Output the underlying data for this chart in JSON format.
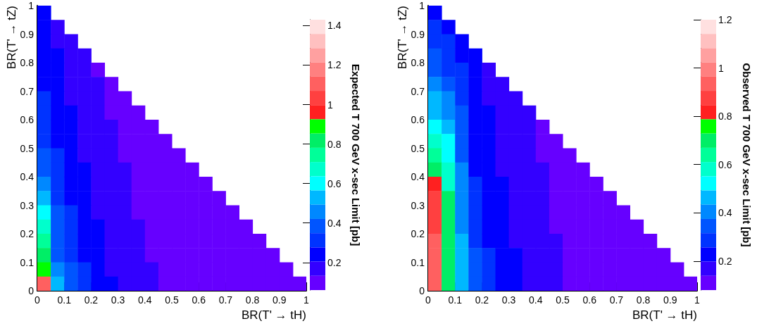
{
  "chart_data": [
    {
      "type": "heatmap",
      "xlabel": "BR(T' → tH)",
      "ylabel": "BR(T' → tZ)",
      "clabel": "Expected T 700 GeV x-sec Limit [pb]",
      "xlim": [
        0,
        1
      ],
      "xticks": [
        0,
        0.1,
        0.2,
        0.3,
        0.4,
        0.5,
        0.6,
        0.7,
        0.8,
        0.9,
        1
      ],
      "ylim": [
        0,
        1
      ],
      "yticks": [
        0,
        0.1,
        0.2,
        0.3,
        0.4,
        0.5,
        0.6,
        0.7,
        0.8,
        0.9,
        1
      ],
      "clim": [
        0.06,
        1.43
      ],
      "cticks": [
        0.2,
        0.4,
        0.6,
        0.8,
        1,
        1.2,
        1.4
      ],
      "cells": [
        [
          0.24,
          null,
          null,
          null,
          null,
          null,
          null,
          null,
          null,
          null,
          null,
          null,
          null,
          null,
          null,
          null,
          null,
          null,
          null,
          null
        ],
        [
          0.24,
          0.17,
          null,
          null,
          null,
          null,
          null,
          null,
          null,
          null,
          null,
          null,
          null,
          null,
          null,
          null,
          null,
          null,
          null,
          null
        ],
        [
          0.24,
          0.17,
          0.17,
          null,
          null,
          null,
          null,
          null,
          null,
          null,
          null,
          null,
          null,
          null,
          null,
          null,
          null,
          null,
          null,
          null
        ],
        [
          0.24,
          0.24,
          0.17,
          0.17,
          null,
          null,
          null,
          null,
          null,
          null,
          null,
          null,
          null,
          null,
          null,
          null,
          null,
          null,
          null,
          null
        ],
        [
          0.24,
          0.24,
          0.17,
          0.17,
          0.09,
          null,
          null,
          null,
          null,
          null,
          null,
          null,
          null,
          null,
          null,
          null,
          null,
          null,
          null,
          null
        ],
        [
          0.24,
          0.24,
          0.17,
          0.17,
          0.17,
          0.09,
          null,
          null,
          null,
          null,
          null,
          null,
          null,
          null,
          null,
          null,
          null,
          null,
          null,
          null
        ],
        [
          0.31,
          0.24,
          0.17,
          0.17,
          0.17,
          0.09,
          0.09,
          null,
          null,
          null,
          null,
          null,
          null,
          null,
          null,
          null,
          null,
          null,
          null,
          null
        ],
        [
          0.31,
          0.24,
          0.24,
          0.17,
          0.17,
          0.09,
          0.09,
          0.09,
          null,
          null,
          null,
          null,
          null,
          null,
          null,
          null,
          null,
          null,
          null,
          null
        ],
        [
          0.31,
          0.24,
          0.24,
          0.17,
          0.17,
          0.17,
          0.09,
          0.09,
          0.09,
          null,
          null,
          null,
          null,
          null,
          null,
          null,
          null,
          null,
          null,
          null
        ],
        [
          0.31,
          0.24,
          0.24,
          0.17,
          0.17,
          0.17,
          0.09,
          0.09,
          0.09,
          0.09,
          null,
          null,
          null,
          null,
          null,
          null,
          null,
          null,
          null,
          null
        ],
        [
          0.38,
          0.31,
          0.24,
          0.17,
          0.17,
          0.17,
          0.09,
          0.09,
          0.09,
          0.09,
          0.09,
          null,
          null,
          null,
          null,
          null,
          null,
          null,
          null,
          null
        ],
        [
          0.38,
          0.31,
          0.24,
          0.24,
          0.17,
          0.17,
          0.17,
          0.09,
          0.09,
          0.09,
          0.09,
          0.09,
          null,
          null,
          null,
          null,
          null,
          null,
          null,
          null
        ],
        [
          0.46,
          0.31,
          0.24,
          0.24,
          0.17,
          0.17,
          0.17,
          0.09,
          0.09,
          0.09,
          0.09,
          0.09,
          0.09,
          null,
          null,
          null,
          null,
          null,
          null,
          null
        ],
        [
          0.53,
          0.31,
          0.24,
          0.24,
          0.17,
          0.17,
          0.17,
          0.09,
          0.09,
          0.09,
          0.09,
          0.09,
          0.09,
          0.09,
          null,
          null,
          null,
          null,
          null,
          null
        ],
        [
          0.6,
          0.38,
          0.31,
          0.24,
          0.17,
          0.17,
          0.17,
          0.09,
          0.09,
          0.09,
          0.09,
          0.09,
          0.09,
          0.09,
          0.09,
          null,
          null,
          null,
          null,
          null
        ],
        [
          0.67,
          0.38,
          0.31,
          0.24,
          0.24,
          0.17,
          0.17,
          0.17,
          0.09,
          0.09,
          0.09,
          0.09,
          0.09,
          0.09,
          0.09,
          0.09,
          null,
          null,
          null,
          null
        ],
        [
          0.75,
          0.38,
          0.31,
          0.24,
          0.24,
          0.17,
          0.17,
          0.17,
          0.09,
          0.09,
          0.09,
          0.09,
          0.09,
          0.09,
          0.09,
          0.09,
          0.09,
          null,
          null,
          null
        ],
        [
          0.82,
          0.38,
          0.31,
          0.24,
          0.24,
          0.17,
          0.17,
          0.17,
          0.09,
          0.09,
          0.09,
          0.09,
          0.09,
          0.09,
          0.09,
          0.09,
          0.09,
          0.09,
          null,
          null
        ],
        [
          0.89,
          0.46,
          0.38,
          0.31,
          0.24,
          0.17,
          0.17,
          0.17,
          0.17,
          0.09,
          0.09,
          0.09,
          0.09,
          0.09,
          0.09,
          0.09,
          0.09,
          0.09,
          0.09,
          null
        ],
        [
          1.11,
          0.53,
          0.38,
          0.31,
          0.24,
          0.24,
          0.17,
          0.17,
          0.17,
          0.09,
          0.09,
          0.09,
          0.09,
          0.09,
          0.09,
          0.09,
          0.09,
          0.09,
          0.09,
          0.09
        ]
      ]
    },
    {
      "type": "heatmap",
      "xlabel": "BR(T' → tH)",
      "ylabel": "BR(T' → tZ)",
      "clabel": "Observed T 700 GeV x-sec Limit [pb]",
      "xlim": [
        0,
        1
      ],
      "xticks": [
        0,
        0.1,
        0.2,
        0.3,
        0.4,
        0.5,
        0.6,
        0.7,
        0.8,
        0.9,
        1
      ],
      "ylim": [
        0,
        1
      ],
      "yticks": [
        0,
        0.1,
        0.2,
        0.3,
        0.4,
        0.5,
        0.6,
        0.7,
        0.8,
        0.9,
        1
      ],
      "clim": [
        0.08,
        1.2
      ],
      "cticks": [
        0.2,
        0.4,
        0.6,
        0.8,
        1,
        1.2
      ],
      "cells": [
        [
          0.22,
          null,
          null,
          null,
          null,
          null,
          null,
          null,
          null,
          null,
          null,
          null,
          null,
          null,
          null,
          null,
          null,
          null,
          null,
          null
        ],
        [
          0.28,
          0.22,
          null,
          null,
          null,
          null,
          null,
          null,
          null,
          null,
          null,
          null,
          null,
          null,
          null,
          null,
          null,
          null,
          null,
          null
        ],
        [
          0.28,
          0.28,
          0.22,
          null,
          null,
          null,
          null,
          null,
          null,
          null,
          null,
          null,
          null,
          null,
          null,
          null,
          null,
          null,
          null,
          null
        ],
        [
          0.34,
          0.28,
          0.22,
          0.22,
          null,
          null,
          null,
          null,
          null,
          null,
          null,
          null,
          null,
          null,
          null,
          null,
          null,
          null,
          null,
          null
        ],
        [
          0.34,
          0.28,
          0.28,
          0.22,
          0.17,
          null,
          null,
          null,
          null,
          null,
          null,
          null,
          null,
          null,
          null,
          null,
          null,
          null,
          null,
          null
        ],
        [
          0.39,
          0.34,
          0.28,
          0.22,
          0.17,
          0.17,
          null,
          null,
          null,
          null,
          null,
          null,
          null,
          null,
          null,
          null,
          null,
          null,
          null,
          null
        ],
        [
          0.45,
          0.39,
          0.28,
          0.22,
          0.17,
          0.17,
          0.17,
          null,
          null,
          null,
          null,
          null,
          null,
          null,
          null,
          null,
          null,
          null,
          null,
          null
        ],
        [
          0.45,
          0.39,
          0.34,
          0.22,
          0.22,
          0.17,
          0.17,
          0.17,
          null,
          null,
          null,
          null,
          null,
          null,
          null,
          null,
          null,
          null,
          null,
          null
        ],
        [
          0.51,
          0.45,
          0.34,
          0.22,
          0.22,
          0.17,
          0.17,
          0.17,
          0.11,
          null,
          null,
          null,
          null,
          null,
          null,
          null,
          null,
          null,
          null,
          null
        ],
        [
          0.56,
          0.51,
          0.34,
          0.22,
          0.22,
          0.17,
          0.17,
          0.17,
          0.11,
          0.11,
          null,
          null,
          null,
          null,
          null,
          null,
          null,
          null,
          null,
          null
        ],
        [
          0.62,
          0.51,
          0.34,
          0.22,
          0.22,
          0.17,
          0.17,
          0.17,
          0.11,
          0.11,
          0.11,
          null,
          null,
          null,
          null,
          null,
          null,
          null,
          null,
          null
        ],
        [
          0.68,
          0.56,
          0.39,
          0.22,
          0.22,
          0.17,
          0.17,
          0.17,
          0.17,
          0.11,
          0.11,
          0.11,
          null,
          null,
          null,
          null,
          null,
          null,
          null,
          null
        ],
        [
          0.79,
          0.56,
          0.39,
          0.28,
          0.22,
          0.22,
          0.17,
          0.17,
          0.17,
          0.11,
          0.11,
          0.11,
          0.11,
          null,
          null,
          null,
          null,
          null,
          null,
          null
        ],
        [
          0.85,
          0.68,
          0.39,
          0.28,
          0.22,
          0.22,
          0.17,
          0.17,
          0.17,
          0.11,
          0.11,
          0.11,
          0.11,
          0.11,
          null,
          null,
          null,
          null,
          null,
          null
        ],
        [
          0.9,
          0.68,
          0.39,
          0.28,
          0.22,
          0.22,
          0.17,
          0.17,
          0.17,
          0.11,
          0.11,
          0.11,
          0.11,
          0.11,
          0.11,
          null,
          null,
          null,
          null,
          null
        ],
        [
          0.9,
          0.68,
          0.39,
          0.28,
          0.22,
          0.22,
          0.17,
          0.17,
          0.17,
          0.11,
          0.11,
          0.11,
          0.11,
          0.11,
          0.11,
          0.11,
          null,
          null,
          null,
          null
        ],
        [
          0.96,
          0.68,
          0.45,
          0.28,
          0.22,
          0.22,
          0.17,
          0.17,
          0.17,
          0.17,
          0.11,
          0.11,
          0.11,
          0.11,
          0.11,
          0.11,
          0.11,
          null,
          null,
          null
        ],
        [
          0.96,
          0.68,
          0.45,
          0.34,
          0.28,
          0.22,
          0.22,
          0.17,
          0.17,
          0.17,
          0.11,
          0.11,
          0.11,
          0.11,
          0.11,
          0.11,
          0.11,
          0.11,
          null,
          null
        ],
        [
          0.96,
          0.68,
          0.45,
          0.34,
          0.28,
          0.22,
          0.22,
          0.17,
          0.17,
          0.17,
          0.11,
          0.11,
          0.11,
          0.11,
          0.11,
          0.11,
          0.11,
          0.11,
          0.11,
          null
        ],
        [
          0.96,
          0.68,
          0.45,
          0.34,
          0.28,
          0.22,
          0.22,
          0.17,
          0.17,
          0.17,
          0.11,
          0.11,
          0.11,
          0.11,
          0.11,
          0.11,
          0.11,
          0.11,
          0.11,
          0.11
        ]
      ]
    }
  ]
}
